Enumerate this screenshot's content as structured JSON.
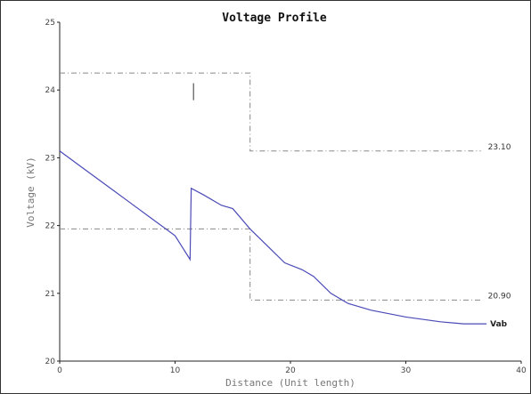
{
  "chart_data": {
    "type": "line",
    "title": "Voltage Profile",
    "xlabel": "Distance (Unit length)",
    "ylabel": "Voltage (kV)",
    "xlim": [
      0,
      40
    ],
    "ylim": [
      20,
      25
    ],
    "xticks": [
      0,
      10,
      20,
      30,
      40
    ],
    "yticks": [
      20,
      21,
      22,
      23,
      24,
      25
    ],
    "grid": false,
    "series": [
      {
        "name": "Vab",
        "color": "#4a4ab8",
        "x": [
          0,
          2,
          4,
          6,
          8,
          10,
          11.3,
          11.4,
          12.5,
          14,
          15,
          16.5,
          18,
          19.5,
          21,
          22,
          23.5,
          25,
          27,
          30,
          33,
          35,
          37
        ],
        "y": [
          23.1,
          22.85,
          22.6,
          22.35,
          22.1,
          21.85,
          21.5,
          22.55,
          22.45,
          22.3,
          22.25,
          21.95,
          21.7,
          21.45,
          21.35,
          21.25,
          21.0,
          20.85,
          20.75,
          20.65,
          20.58,
          20.55,
          20.55
        ]
      }
    ],
    "annotations": [
      {
        "label": "23.10",
        "color": "#888888",
        "style": "dashed",
        "x": [
          0,
          16.5,
          16.5,
          36.5
        ],
        "y": [
          24.25,
          24.25,
          23.1,
          23.1
        ]
      },
      {
        "label": "20.90",
        "color": "#888888",
        "style": "dashed",
        "x": [
          0,
          16.5,
          16.5,
          36.5
        ],
        "y": [
          21.95,
          21.95,
          20.9,
          20.9
        ]
      }
    ],
    "markers": [
      {
        "x": 11.6,
        "y1": 23.85,
        "y2": 24.1,
        "color": "#555555"
      }
    ]
  }
}
